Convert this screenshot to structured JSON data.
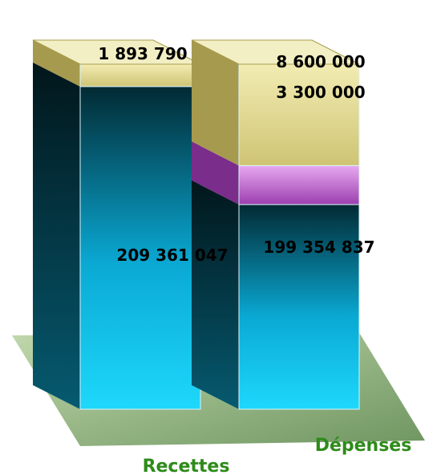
{
  "chart_data": {
    "type": "bar",
    "stacked": true,
    "categories": [
      "Recettes",
      "Dépenses"
    ],
    "series": [
      {
        "values": [
          209361047,
          199354837
        ]
      },
      {
        "values": [
          0,
          3300000
        ]
      },
      {
        "values": [
          1893790,
          8600000
        ]
      }
    ],
    "data_labels": [
      [
        "209 361 047",
        "199 354 837"
      ],
      [
        "",
        "3 300 000"
      ],
      [
        "1 893 790",
        "8 600 000"
      ]
    ],
    "category_label_color": "#2e8b1a",
    "series_colors": [
      "#0aa9d4",
      "#b957c9",
      "#ddd58a"
    ]
  }
}
